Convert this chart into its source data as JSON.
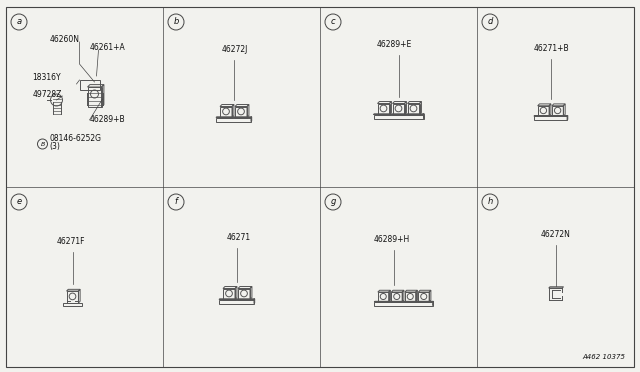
{
  "bg_color": "#f2f2ee",
  "border_color": "#444444",
  "line_color": "#444444",
  "part_color": "#555555",
  "text_color": "#111111",
  "grid_lines": {
    "vertical": [
      0.25,
      0.5,
      0.75
    ],
    "horizontal": [
      0.5
    ]
  },
  "panels": [
    {
      "id": "a",
      "col": 0,
      "row": 0,
      "label": "a"
    },
    {
      "id": "b",
      "col": 1,
      "row": 0,
      "label": "b"
    },
    {
      "id": "c",
      "col": 2,
      "row": 0,
      "label": "c"
    },
    {
      "id": "d",
      "col": 3,
      "row": 0,
      "label": "d"
    },
    {
      "id": "e",
      "col": 0,
      "row": 1,
      "label": "e"
    },
    {
      "id": "f",
      "col": 1,
      "row": 1,
      "label": "f"
    },
    {
      "id": "g",
      "col": 2,
      "row": 1,
      "label": "g"
    },
    {
      "id": "h",
      "col": 3,
      "row": 1,
      "label": "h"
    }
  ],
  "diagram_code": "A462 10375",
  "font_size_label": 5.5,
  "font_size_panel": 6.0,
  "font_size_code": 5.0,
  "outer_border_lw": 0.8,
  "grid_lw": 0.5
}
